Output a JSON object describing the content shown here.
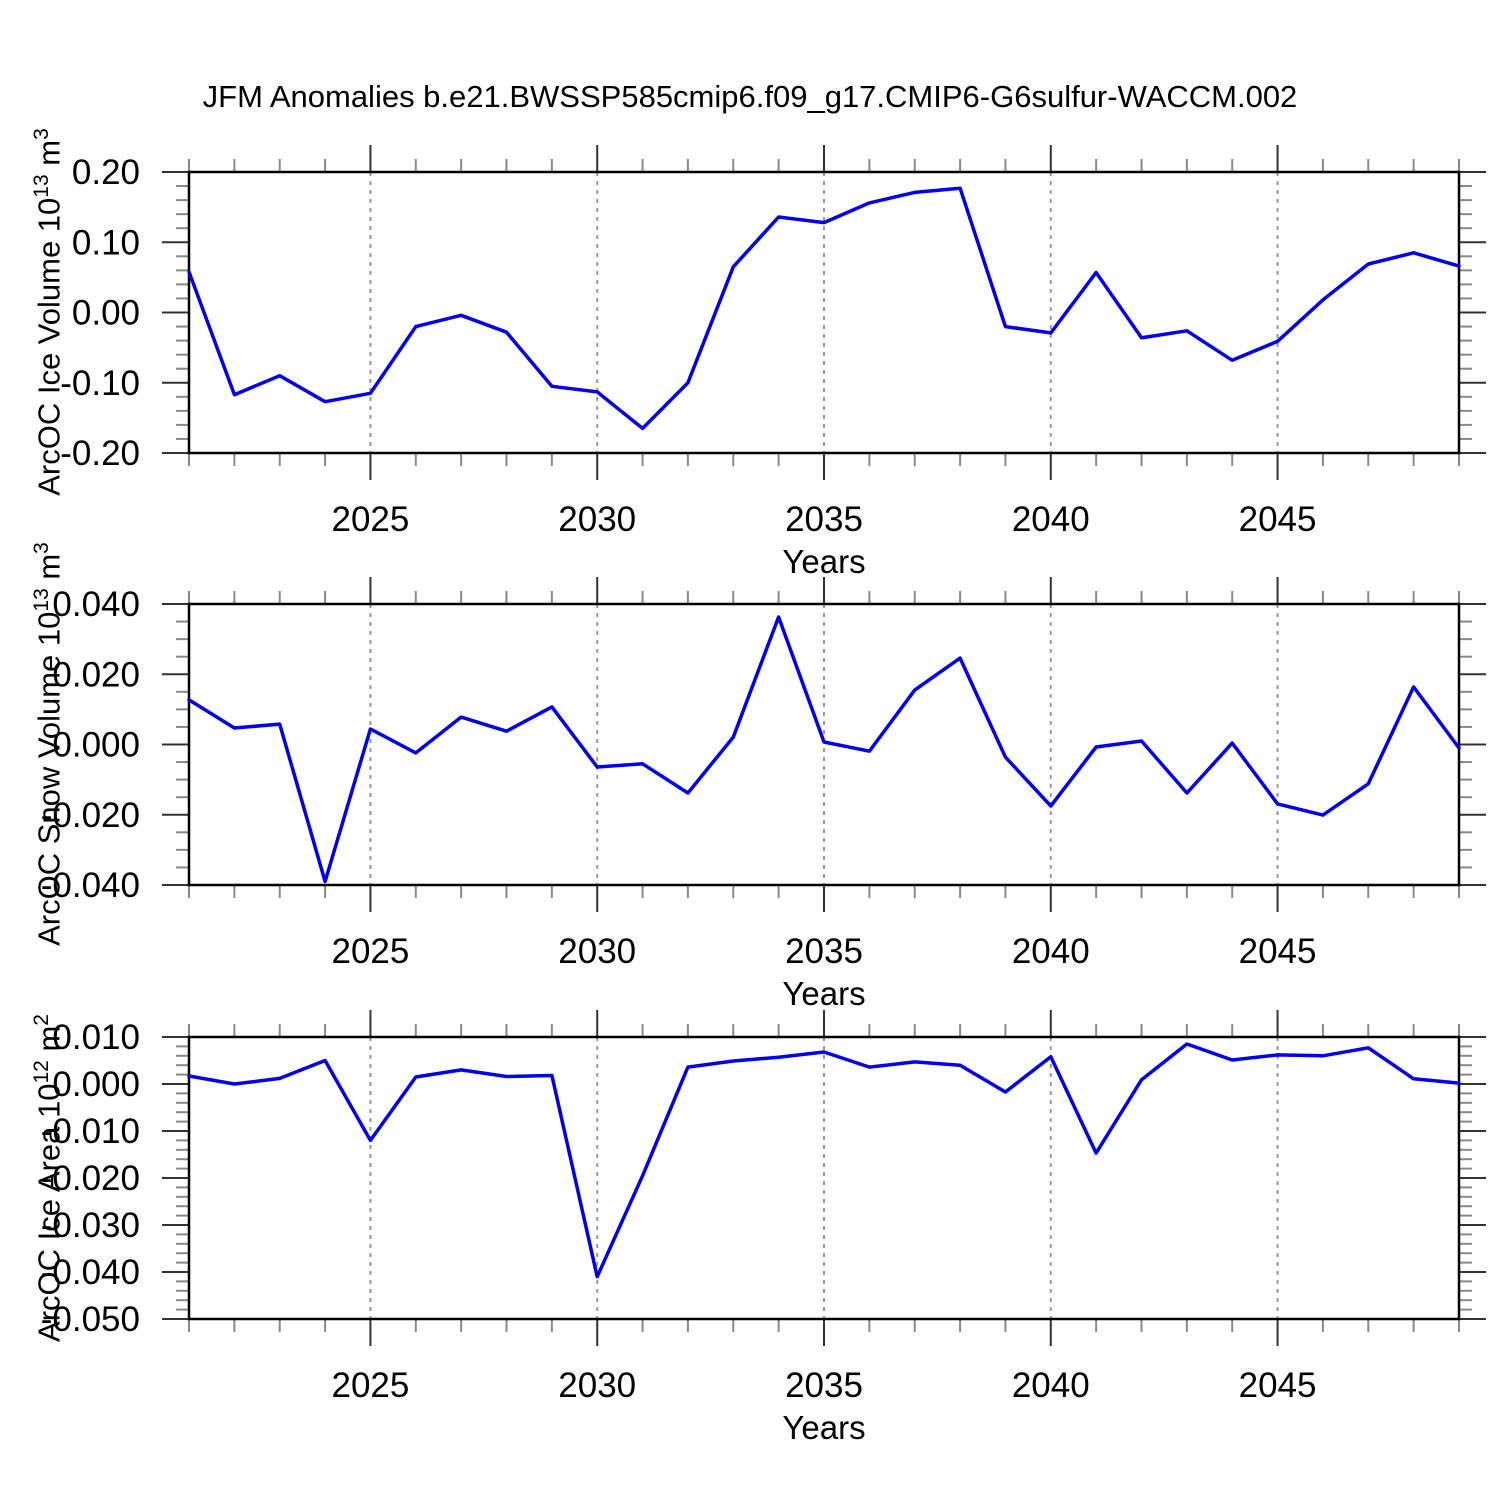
{
  "title": "JFM Anomalies b.e21.BWSSP585cmip6.f09_g17.CMIP6-G6sulfur-WACCM.002",
  "colors": {
    "line": "#0000ee",
    "frame": "#000000",
    "grid": "#999999",
    "tick_major": "#333333",
    "tick_minor": "#898989"
  },
  "chart_data": [
    {
      "type": "line",
      "name": "ice-volume",
      "ylabel": {
        "main": "ArcOC Ice Volume 10",
        "sup1": "13",
        "mid": " m",
        "sup2": "3"
      },
      "xlabel": "Years",
      "xlim": [
        2021,
        2049
      ],
      "ylim": [
        -0.2,
        0.2
      ],
      "xminor_step": 1,
      "yminor_step": 0.02,
      "legend": "none",
      "grid": "vertical-dashed-at-major-xticks",
      "xticks": [
        {
          "v": 2025,
          "label": "2025"
        },
        {
          "v": 2030,
          "label": "2030"
        },
        {
          "v": 2035,
          "label": "2035"
        },
        {
          "v": 2040,
          "label": "2040"
        },
        {
          "v": 2045,
          "label": "2045"
        }
      ],
      "yticks": [
        {
          "v": 0.2,
          "label": "0.20"
        },
        {
          "v": 0.1,
          "label": "0.10"
        },
        {
          "v": 0.0,
          "label": "0.00"
        },
        {
          "v": -0.1,
          "label": "-0.10"
        },
        {
          "v": -0.2,
          "label": "-0.20"
        }
      ],
      "x": [
        2021,
        2022,
        2023,
        2024,
        2025,
        2026,
        2027,
        2028,
        2029,
        2030,
        2031,
        2032,
        2033,
        2034,
        2035,
        2036,
        2037,
        2038,
        2039,
        2040,
        2041,
        2042,
        2043,
        2044,
        2045,
        2046,
        2047,
        2048,
        2049
      ],
      "values": [
        0.058,
        -0.117,
        -0.09,
        -0.127,
        -0.115,
        -0.02,
        -0.004,
        -0.028,
        -0.105,
        -0.113,
        -0.165,
        -0.1,
        0.065,
        0.136,
        0.128,
        0.156,
        0.171,
        0.177,
        -0.02,
        -0.029,
        0.057,
        -0.036,
        -0.026,
        -0.068,
        -0.041,
        0.018,
        0.069,
        0.085,
        0.066
      ]
    },
    {
      "type": "line",
      "name": "snow-volume",
      "ylabel": {
        "main": "ArcOC Snow Volume 10",
        "sup1": "13",
        "mid": " m",
        "sup2": "3"
      },
      "xlabel": "Years",
      "xlim": [
        2021,
        2049
      ],
      "ylim": [
        -0.04,
        0.04
      ],
      "xminor_step": 1,
      "yminor_step": 0.005,
      "legend": "none",
      "grid": "vertical-dashed-at-major-xticks",
      "xticks": [
        {
          "v": 2025,
          "label": "2025"
        },
        {
          "v": 2030,
          "label": "2030"
        },
        {
          "v": 2035,
          "label": "2035"
        },
        {
          "v": 2040,
          "label": "2040"
        },
        {
          "v": 2045,
          "label": "2045"
        }
      ],
      "yticks": [
        {
          "v": 0.04,
          "label": "0.040"
        },
        {
          "v": 0.02,
          "label": "0.020"
        },
        {
          "v": 0.0,
          "label": "0.000"
        },
        {
          "v": -0.02,
          "label": "-0.020"
        },
        {
          "v": -0.04,
          "label": "-0.040"
        }
      ],
      "x": [
        2021,
        2022,
        2023,
        2024,
        2025,
        2026,
        2027,
        2028,
        2029,
        2030,
        2031,
        2032,
        2033,
        2034,
        2035,
        2036,
        2037,
        2038,
        2039,
        2040,
        2041,
        2042,
        2043,
        2044,
        2045,
        2046,
        2047,
        2048,
        2049
      ],
      "values": [
        0.0127,
        0.0047,
        0.0058,
        -0.039,
        0.0044,
        -0.0024,
        0.0078,
        0.0038,
        0.0107,
        -0.0064,
        -0.0055,
        -0.0138,
        0.0021,
        0.0363,
        0.0007,
        -0.0019,
        0.0155,
        0.0246,
        -0.0036,
        -0.0175,
        -0.0007,
        0.001,
        -0.0138,
        0.0004,
        -0.0169,
        -0.0201,
        -0.0112,
        0.0164,
        -0.001
      ]
    },
    {
      "type": "line",
      "name": "ice-area",
      "ylabel": {
        "main": "ArcOC Ice Area 10",
        "sup1": "12",
        "mid": " m",
        "sup2": "2"
      },
      "xlabel": "Years",
      "xlim": [
        2021,
        2049
      ],
      "ylim": [
        -0.05,
        0.01
      ],
      "xminor_step": 1,
      "yminor_step": 0.002,
      "legend": "none",
      "grid": "vertical-dashed-at-major-xticks",
      "xticks": [
        {
          "v": 2025,
          "label": "2025"
        },
        {
          "v": 2030,
          "label": "2030"
        },
        {
          "v": 2035,
          "label": "2035"
        },
        {
          "v": 2040,
          "label": "2040"
        },
        {
          "v": 2045,
          "label": "2045"
        }
      ],
      "yticks": [
        {
          "v": 0.01,
          "label": "0.010"
        },
        {
          "v": 0.0,
          "label": "0.000"
        },
        {
          "v": -0.01,
          "label": "-0.010"
        },
        {
          "v": -0.02,
          "label": "-0.020"
        },
        {
          "v": -0.03,
          "label": "-0.030"
        },
        {
          "v": -0.04,
          "label": "-0.040"
        },
        {
          "v": -0.05,
          "label": "-0.050"
        }
      ],
      "x": [
        2021,
        2022,
        2023,
        2024,
        2025,
        2026,
        2027,
        2028,
        2029,
        2030,
        2031,
        2032,
        2033,
        2034,
        2035,
        2036,
        2037,
        2038,
        2039,
        2040,
        2041,
        2042,
        2043,
        2044,
        2045,
        2046,
        2047,
        2048,
        2049
      ],
      "values": [
        0.0017,
        0.0,
        0.0012,
        0.005,
        -0.012,
        0.0015,
        0.003,
        0.0016,
        0.0018,
        -0.041,
        -0.0195,
        0.0036,
        0.0049,
        0.0057,
        0.0068,
        0.0036,
        0.0047,
        0.004,
        -0.0017,
        0.0058,
        -0.0147,
        0.0009,
        0.0085,
        0.0051,
        0.0062,
        0.006,
        0.0077,
        0.0011,
        0.0002
      ]
    }
  ]
}
